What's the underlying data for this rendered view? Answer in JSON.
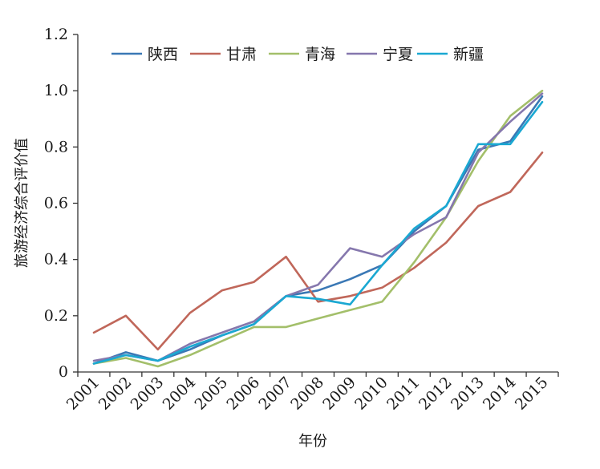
{
  "chart_data": {
    "type": "line",
    "title": "",
    "xlabel": "年份",
    "ylabel": "旅游经济综合评价值",
    "ylim": [
      0,
      1.2
    ],
    "yticks": [
      "0",
      "0.2",
      "0.4",
      "0.6",
      "0.8",
      "1.0",
      "1.2"
    ],
    "grid": false,
    "legend_position": "top",
    "x": [
      "2001",
      "2002",
      "2003",
      "2004",
      "2005",
      "2006",
      "2007",
      "2008",
      "2009",
      "2010",
      "2011",
      "2012",
      "2013",
      "2014",
      "2015"
    ],
    "series": [
      {
        "name": "陕西",
        "color": "#3a78b5",
        "values": [
          0.03,
          0.07,
          0.04,
          0.08,
          0.13,
          0.17,
          0.27,
          0.29,
          0.33,
          0.38,
          0.5,
          0.59,
          0.79,
          0.82,
          0.98
        ]
      },
      {
        "name": "甘肃",
        "color": "#c0675a",
        "values": [
          0.14,
          0.2,
          0.08,
          0.21,
          0.29,
          0.32,
          0.41,
          0.25,
          0.27,
          0.3,
          0.37,
          0.46,
          0.59,
          0.64,
          0.78
        ]
      },
      {
        "name": "青海",
        "color": "#a3bf6a",
        "values": [
          0.03,
          0.05,
          0.02,
          0.06,
          0.11,
          0.16,
          0.16,
          0.19,
          0.22,
          0.25,
          0.39,
          0.55,
          0.75,
          0.91,
          1.0
        ]
      },
      {
        "name": "宁夏",
        "color": "#8577ad",
        "values": [
          0.04,
          0.06,
          0.04,
          0.1,
          0.14,
          0.18,
          0.27,
          0.31,
          0.44,
          0.41,
          0.49,
          0.55,
          0.78,
          0.89,
          0.99
        ]
      },
      {
        "name": "新疆",
        "color": "#1aa8d2",
        "values": [
          0.03,
          0.06,
          0.04,
          0.09,
          0.13,
          0.17,
          0.27,
          0.26,
          0.24,
          0.38,
          0.51,
          0.59,
          0.81,
          0.81,
          0.96
        ]
      }
    ]
  }
}
